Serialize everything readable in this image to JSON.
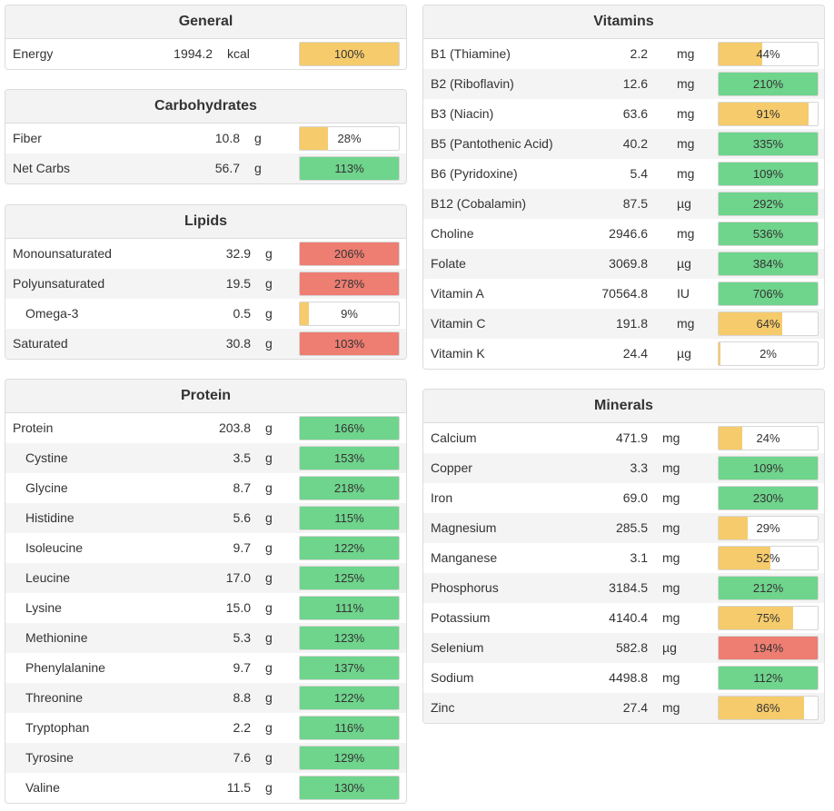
{
  "colors": {
    "yellow": "#f6cb6c",
    "green": "#6fd48c",
    "red": "#ee7d72",
    "header_bg": "#f3f3f3",
    "alt_row_bg": "#f4f4f4"
  },
  "general": {
    "title": "General",
    "rows": [
      {
        "name": "Energy",
        "amount": "1994.2",
        "unit": "kcal",
        "pct": "100%",
        "fill": 100,
        "color": "yellow"
      }
    ]
  },
  "carbohydrates": {
    "title": "Carbohydrates",
    "rows": [
      {
        "name": "Fiber",
        "amount": "10.8",
        "unit": "g",
        "pct": "28%",
        "fill": 28,
        "color": "yellow"
      },
      {
        "name": "Net Carbs",
        "amount": "56.7",
        "unit": "g",
        "pct": "113%",
        "fill": 100,
        "color": "green"
      }
    ]
  },
  "lipids": {
    "title": "Lipids",
    "rows": [
      {
        "name": "Monounsaturated",
        "amount": "32.9",
        "unit": "g",
        "pct": "206%",
        "fill": 100,
        "color": "red"
      },
      {
        "name": "Polyunsaturated",
        "amount": "19.5",
        "unit": "g",
        "pct": "278%",
        "fill": 100,
        "color": "red"
      },
      {
        "name": "Omega-3",
        "amount": "0.5",
        "unit": "g",
        "pct": "9%",
        "fill": 9,
        "color": "yellow"
      },
      {
        "name": "Saturated",
        "amount": "30.8",
        "unit": "g",
        "pct": "103%",
        "fill": 100,
        "color": "red"
      }
    ]
  },
  "protein": {
    "title": "Protein",
    "rows": [
      {
        "name": "Protein",
        "amount": "203.8",
        "unit": "g",
        "pct": "166%",
        "fill": 100,
        "color": "green"
      },
      {
        "name": "Cystine",
        "amount": "3.5",
        "unit": "g",
        "pct": "153%",
        "fill": 100,
        "color": "green"
      },
      {
        "name": "Glycine",
        "amount": "8.7",
        "unit": "g",
        "pct": "218%",
        "fill": 100,
        "color": "green"
      },
      {
        "name": "Histidine",
        "amount": "5.6",
        "unit": "g",
        "pct": "115%",
        "fill": 100,
        "color": "green"
      },
      {
        "name": "Isoleucine",
        "amount": "9.7",
        "unit": "g",
        "pct": "122%",
        "fill": 100,
        "color": "green"
      },
      {
        "name": "Leucine",
        "amount": "17.0",
        "unit": "g",
        "pct": "125%",
        "fill": 100,
        "color": "green"
      },
      {
        "name": "Lysine",
        "amount": "15.0",
        "unit": "g",
        "pct": "111%",
        "fill": 100,
        "color": "green"
      },
      {
        "name": "Methionine",
        "amount": "5.3",
        "unit": "g",
        "pct": "123%",
        "fill": 100,
        "color": "green"
      },
      {
        "name": "Phenylalanine",
        "amount": "9.7",
        "unit": "g",
        "pct": "137%",
        "fill": 100,
        "color": "green"
      },
      {
        "name": "Threonine",
        "amount": "8.8",
        "unit": "g",
        "pct": "122%",
        "fill": 100,
        "color": "green"
      },
      {
        "name": "Tryptophan",
        "amount": "2.2",
        "unit": "g",
        "pct": "116%",
        "fill": 100,
        "color": "green"
      },
      {
        "name": "Tyrosine",
        "amount": "7.6",
        "unit": "g",
        "pct": "129%",
        "fill": 100,
        "color": "green"
      },
      {
        "name": "Valine",
        "amount": "11.5",
        "unit": "g",
        "pct": "130%",
        "fill": 100,
        "color": "green"
      }
    ]
  },
  "vitamins": {
    "title": "Vitamins",
    "rows": [
      {
        "name": "B1 (Thiamine)",
        "amount": "2.2",
        "unit": "mg",
        "pct": "44%",
        "fill": 44,
        "color": "yellow"
      },
      {
        "name": "B2 (Riboflavin)",
        "amount": "12.6",
        "unit": "mg",
        "pct": "210%",
        "fill": 100,
        "color": "green"
      },
      {
        "name": "B3 (Niacin)",
        "amount": "63.6",
        "unit": "mg",
        "pct": "91%",
        "fill": 91,
        "color": "yellow"
      },
      {
        "name": "B5 (Pantothenic Acid)",
        "amount": "40.2",
        "unit": "mg",
        "pct": "335%",
        "fill": 100,
        "color": "green"
      },
      {
        "name": "B6 (Pyridoxine)",
        "amount": "5.4",
        "unit": "mg",
        "pct": "109%",
        "fill": 100,
        "color": "green"
      },
      {
        "name": "B12 (Cobalamin)",
        "amount": "87.5",
        "unit": "µg",
        "pct": "292%",
        "fill": 100,
        "color": "green"
      },
      {
        "name": "Choline",
        "amount": "2946.6",
        "unit": "mg",
        "pct": "536%",
        "fill": 100,
        "color": "green"
      },
      {
        "name": "Folate",
        "amount": "3069.8",
        "unit": "µg",
        "pct": "384%",
        "fill": 100,
        "color": "green"
      },
      {
        "name": "Vitamin A",
        "amount": "70564.8",
        "unit": "IU",
        "pct": "706%",
        "fill": 100,
        "color": "green"
      },
      {
        "name": "Vitamin C",
        "amount": "191.8",
        "unit": "mg",
        "pct": "64%",
        "fill": 64,
        "color": "yellow"
      },
      {
        "name": "Vitamin K",
        "amount": "24.4",
        "unit": "µg",
        "pct": "2%",
        "fill": 2,
        "color": "yellow"
      }
    ]
  },
  "minerals": {
    "title": "Minerals",
    "rows": [
      {
        "name": "Calcium",
        "amount": "471.9",
        "unit": "mg",
        "pct": "24%",
        "fill": 24,
        "color": "yellow"
      },
      {
        "name": "Copper",
        "amount": "3.3",
        "unit": "mg",
        "pct": "109%",
        "fill": 100,
        "color": "green"
      },
      {
        "name": "Iron",
        "amount": "69.0",
        "unit": "mg",
        "pct": "230%",
        "fill": 100,
        "color": "green"
      },
      {
        "name": "Magnesium",
        "amount": "285.5",
        "unit": "mg",
        "pct": "29%",
        "fill": 29,
        "color": "yellow"
      },
      {
        "name": "Manganese",
        "amount": "3.1",
        "unit": "mg",
        "pct": "52%",
        "fill": 52,
        "color": "yellow"
      },
      {
        "name": "Phosphorus",
        "amount": "3184.5",
        "unit": "mg",
        "pct": "212%",
        "fill": 100,
        "color": "green"
      },
      {
        "name": "Potassium",
        "amount": "4140.4",
        "unit": "mg",
        "pct": "75%",
        "fill": 75,
        "color": "yellow"
      },
      {
        "name": "Selenium",
        "amount": "582.8",
        "unit": "µg",
        "pct": "194%",
        "fill": 100,
        "color": "red"
      },
      {
        "name": "Sodium",
        "amount": "4498.8",
        "unit": "mg",
        "pct": "112%",
        "fill": 100,
        "color": "green"
      },
      {
        "name": "Zinc",
        "amount": "27.4",
        "unit": "mg",
        "pct": "86%",
        "fill": 86,
        "color": "yellow"
      }
    ]
  }
}
